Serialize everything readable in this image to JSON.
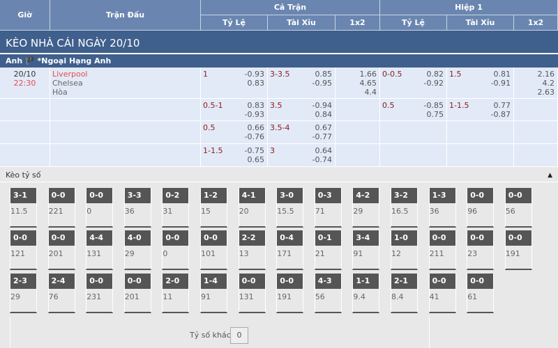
{
  "header": {
    "gio": "Giờ",
    "tran_dau": "Trận Đấu",
    "ca_tran": "Cả Trận",
    "hiep1": "Hiệp 1",
    "ty_le": "Tỷ Lệ",
    "tai_xiu": "Tài Xỉu",
    "x12": "1x2"
  },
  "title": "KÈO NHÀ CÁI NGÀY 20/10",
  "league": "Anh 🏴 *Ngoại Hạng Anh",
  "match": {
    "date": "20/10",
    "time": "22:30",
    "home": "Liverpool",
    "away": "Chelsea",
    "draw": "Hòa"
  },
  "rows": [
    {
      "ft_hc": "1",
      "ft_hc_o": [
        "-0.93",
        "0.83"
      ],
      "ft_ou": "3-3.5",
      "ft_ou_o": [
        "0.85",
        "-0.95"
      ],
      "ft_1x2": [
        "1.66",
        "4.65",
        "4.4"
      ],
      "h1_hc": "0-0.5",
      "h1_hc_o": [
        "0.82",
        "-0.92"
      ],
      "h1_ou": "1.5",
      "h1_ou_o": [
        "0.81",
        "-0.91"
      ],
      "h1_1x2": [
        "2.16",
        "4.2",
        "2.63"
      ]
    },
    {
      "ft_hc": "0.5-1",
      "ft_hc_o": [
        "0.83",
        "-0.93"
      ],
      "ft_ou": "3.5",
      "ft_ou_o": [
        "-0.94",
        "0.84"
      ],
      "h1_hc": "0.5",
      "h1_hc_o": [
        "-0.85",
        "0.75"
      ],
      "h1_ou": "1-1.5",
      "h1_ou_o": [
        "0.77",
        "-0.87"
      ]
    },
    {
      "ft_hc": "0.5",
      "ft_hc_o": [
        "0.66",
        "-0.76"
      ],
      "ft_ou": "3.5-4",
      "ft_ou_o": [
        "0.67",
        "-0.77"
      ]
    },
    {
      "ft_hc": "1-1.5",
      "ft_hc_o": [
        "-0.75",
        "0.65"
      ],
      "ft_ou": "3",
      "ft_ou_o": [
        "0.64",
        "-0.74"
      ]
    }
  ],
  "correct_score": {
    "label": "Kèo tỷ số",
    "collapse_icon": "triangle-up-icon",
    "other_label": "Tỷ số khác",
    "other_value": "0",
    "rows": [
      [
        [
          "3-1",
          "11.5"
        ],
        [
          "0-0",
          "221"
        ],
        [
          "0-0",
          "0"
        ],
        [
          "3-3",
          "36"
        ],
        [
          "0-2",
          "31"
        ],
        [
          "1-2",
          "15"
        ],
        [
          "4-1",
          "20"
        ],
        [
          "3-0",
          "15.5"
        ],
        [
          "0-3",
          "71"
        ],
        [
          "4-2",
          "29"
        ],
        [
          "3-2",
          "16.5"
        ],
        [
          "1-3",
          "36"
        ],
        [
          "0-0",
          "96"
        ],
        [
          "0-0",
          "56"
        ]
      ],
      [
        [
          "0-0",
          "121"
        ],
        [
          "0-0",
          "201"
        ],
        [
          "4-4",
          "131"
        ],
        [
          "4-0",
          "29"
        ],
        [
          "0-0",
          "0"
        ],
        [
          "0-0",
          "101"
        ],
        [
          "2-2",
          "13"
        ],
        [
          "0-4",
          "171"
        ],
        [
          "0-1",
          "21"
        ],
        [
          "3-4",
          "91"
        ],
        [
          "1-0",
          "12"
        ],
        [
          "0-0",
          "211"
        ],
        [
          "0-0",
          "23"
        ],
        [
          "0-0",
          "191"
        ]
      ],
      [
        [
          "2-3",
          "29"
        ],
        [
          "2-4",
          "76"
        ],
        [
          "0-0",
          "231"
        ],
        [
          "0-0",
          "201"
        ],
        [
          "2-0",
          "11"
        ],
        [
          "1-4",
          "91"
        ],
        [
          "0-0",
          "131"
        ],
        [
          "0-0",
          "191"
        ],
        [
          "4-3",
          "56"
        ],
        [
          "1-1",
          "9.4"
        ],
        [
          "2-1",
          "8.4"
        ],
        [
          "0-0",
          "41"
        ],
        [
          "0-0",
          "61"
        ]
      ]
    ]
  }
}
